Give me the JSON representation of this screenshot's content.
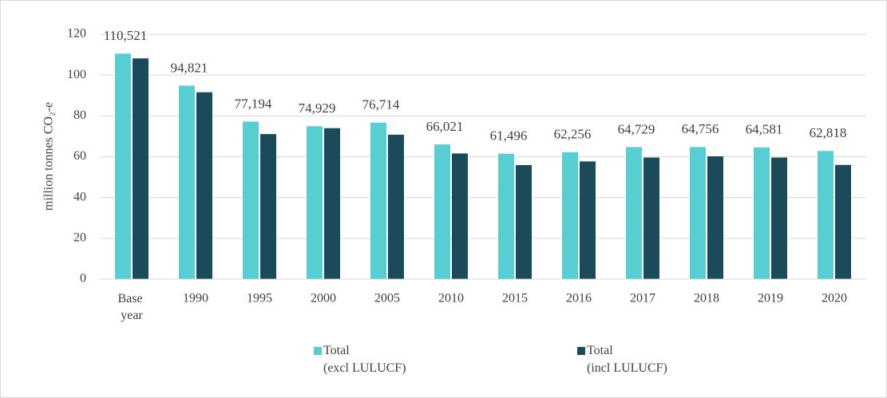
{
  "chart_data": {
    "type": "bar",
    "y_label": "million tonnes CO₂-e",
    "categories": [
      "Base year",
      "1990",
      "1995",
      "2000",
      "2005",
      "2010",
      "2015",
      "2016",
      "2017",
      "2018",
      "2019",
      "2020"
    ],
    "series": [
      {
        "name": "Total (excl LULUCF)",
        "color": "#57cfd2",
        "values": [
          110.521,
          94.821,
          77.194,
          74.929,
          76.714,
          66.021,
          61.496,
          62.256,
          64.729,
          64.756,
          64.581,
          62.818
        ],
        "value_labels": [
          "110,521",
          "94,821",
          "77,194",
          "74,929",
          "76,714",
          "66,021",
          "61,496",
          "62,256",
          "64,729",
          "64,756",
          "64,581",
          "62,818"
        ]
      },
      {
        "name": "Total (incl LULUCF)",
        "color": "#1b4a5a",
        "values": [
          108.2,
          91.6,
          71.1,
          74.0,
          70.8,
          61.6,
          55.9,
          57.7,
          59.6,
          60.2,
          59.6,
          56.0
        ]
      }
    ],
    "ylim": [
      0,
      120
    ],
    "yticks": [
      0,
      20,
      40,
      60,
      80,
      100,
      120
    ],
    "grid": true,
    "legend": "bottom"
  }
}
